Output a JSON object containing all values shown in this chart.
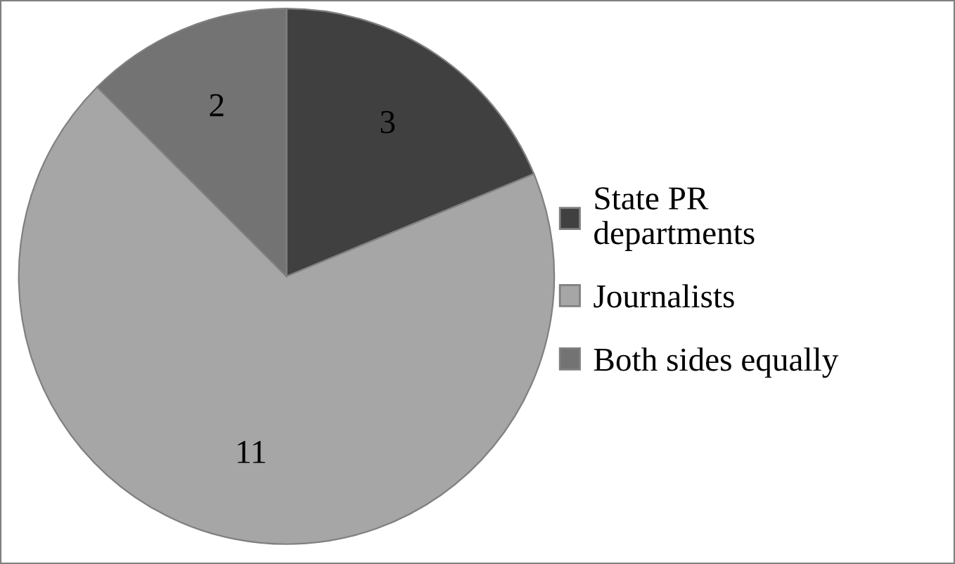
{
  "chart_data": {
    "type": "pie",
    "categories": [
      "State PR departments",
      "Journalists",
      "Both sides equally"
    ],
    "values": [
      3,
      11,
      2
    ],
    "colors": [
      "#404040",
      "#a6a6a6",
      "#737373"
    ],
    "data_labels": true,
    "legend": "right"
  }
}
